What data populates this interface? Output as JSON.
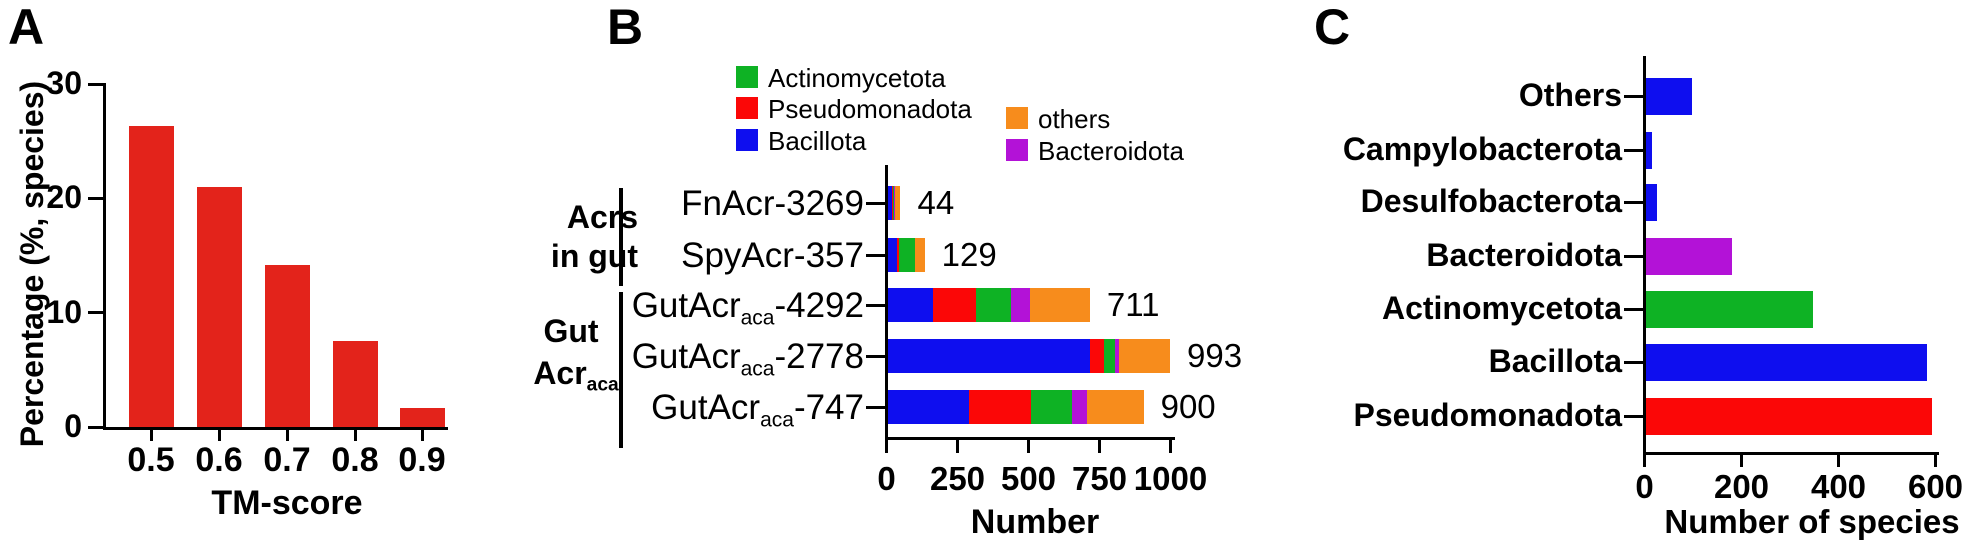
{
  "colors": {
    "panel_a_bar": "#E3231B",
    "actinomycetota": "#0EB224",
    "pseudomonadota": "#FB0707",
    "bacillota": "#0E0EEF",
    "others": "#F78C1C",
    "bacteroidota": "#B312D7",
    "axis": "#000000",
    "text": "#000000"
  },
  "panels": {
    "a": {
      "label": "A",
      "ylabel": "Percentage (%, species)",
      "xlabel": "TM-score"
    },
    "b": {
      "label": "B",
      "xlabel": "Number",
      "legend_col1": [
        {
          "label": "Actinomycetota",
          "color": "actinomycetota"
        },
        {
          "label": "Pseudomonadota",
          "color": "pseudomonadota"
        },
        {
          "label": "Bacillota",
          "color": "bacillota"
        }
      ],
      "legend_col2": [
        {
          "label": "others",
          "color": "others"
        },
        {
          "label": "Bacteroidota",
          "color": "bacteroidota"
        }
      ],
      "groups": [
        {
          "line1": "Acrs",
          "line2": "in gut"
        },
        {
          "line1": "Gut",
          "line2_prefix": "Acr",
          "line2_sub": "aca"
        }
      ]
    },
    "c": {
      "label": "C",
      "xlabel": "Number of species"
    }
  },
  "chart_data": [
    {
      "type": "bar",
      "title": "Panel A",
      "xlabel": "TM-score",
      "ylabel": "Percentage (%, species)",
      "categories": [
        "0.5",
        "0.6",
        "0.7",
        "0.8",
        "0.9"
      ],
      "values": [
        26.3,
        21.0,
        14.2,
        7.5,
        1.7
      ],
      "ylim": [
        0,
        30
      ],
      "yticks": [
        0,
        10,
        20,
        30
      ],
      "grid": false,
      "bar_color": "panel_a_bar"
    },
    {
      "type": "bar",
      "orientation": "horizontal",
      "stacked": true,
      "title": "Panel B",
      "xlabel": "Number",
      "xlim": [
        0,
        1000
      ],
      "xticks": [
        0,
        250,
        500,
        750,
        1000
      ],
      "series_order": [
        "bacillota",
        "pseudomonadota",
        "actinomycetota",
        "bacteroidota",
        "others"
      ],
      "legend": [
        "Actinomycetota",
        "Pseudomonadota",
        "Bacillota",
        "others",
        "Bacteroidota"
      ],
      "rows": [
        {
          "label": {
            "prefix": "FnAcr-3269",
            "sub": "",
            "suffix": ""
          },
          "group": "Acrs in gut",
          "total": 44,
          "segments": {
            "bacillota": 15,
            "pseudomonadota": 4,
            "actinomycetota": 3,
            "bacteroidota": 3,
            "others": 19
          }
        },
        {
          "label": {
            "prefix": "SpyAcr-357",
            "sub": "",
            "suffix": ""
          },
          "group": "Acrs in gut",
          "total": 129,
          "segments": {
            "bacillota": 30,
            "pseudomonadota": 10,
            "actinomycetota": 56,
            "bacteroidota": 0,
            "others": 33
          }
        },
        {
          "label": {
            "prefix": "GutAcr",
            "sub": "aca",
            "suffix": "-4292"
          },
          "group": "Gut Acr aca",
          "total": 711,
          "segments": {
            "bacillota": 160,
            "pseudomonadota": 150,
            "actinomycetota": 123,
            "bacteroidota": 68,
            "others": 210
          }
        },
        {
          "label": {
            "prefix": "GutAcr",
            "sub": "aca",
            "suffix": "-2778"
          },
          "group": "Gut Acr aca",
          "total": 993,
          "segments": {
            "bacillota": 711,
            "pseudomonadota": 49,
            "actinomycetota": 38,
            "bacteroidota": 15,
            "others": 180
          }
        },
        {
          "label": {
            "prefix": "GutAcr",
            "sub": "aca",
            "suffix": "-747"
          },
          "group": "Gut Acr aca",
          "total": 900,
          "segments": {
            "bacillota": 285,
            "pseudomonadota": 217,
            "actinomycetota": 147,
            "bacteroidota": 53,
            "others": 198
          }
        }
      ]
    },
    {
      "type": "bar",
      "orientation": "horizontal",
      "title": "Panel C",
      "xlabel": "Number of species",
      "xlim": [
        0,
        600
      ],
      "xticks": [
        0,
        200,
        400,
        600
      ],
      "categories": [
        "Others",
        "Campylobacterota",
        "Desulfobacterota",
        "Bacteroidota",
        "Actinomycetota",
        "Bacillota",
        "Pseudomonadota"
      ],
      "values": [
        94,
        12,
        22,
        177,
        345,
        580,
        590
      ],
      "bar_colors": [
        "bacillota",
        "bacillota",
        "bacillota",
        "bacteroidota",
        "actinomycetota",
        "bacillota",
        "pseudomonadota"
      ]
    }
  ]
}
